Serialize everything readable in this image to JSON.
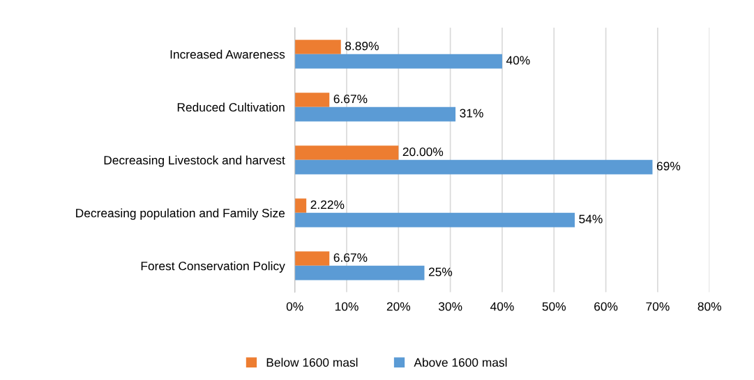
{
  "chart_data": {
    "type": "bar",
    "orientation": "horizontal",
    "categories": [
      "Increased Awareness",
      "Reduced Cultivation",
      "Decreasing Livestock and harvest",
      "Decreasing population and Family Size",
      "Forest Conservation Policy"
    ],
    "series": [
      {
        "name": "Below 1600 masl",
        "color": "#ed7d31",
        "values": [
          8.89,
          6.67,
          20.0,
          2.22,
          6.67
        ],
        "value_labels": [
          "8.89%",
          "6.67%",
          "20.00%",
          "2.22%",
          "6.67%"
        ]
      },
      {
        "name": "Above 1600 masl",
        "color": "#5b9bd5",
        "values": [
          40,
          31,
          69,
          54,
          25
        ],
        "value_labels": [
          "40%",
          "31%",
          "69%",
          "54%",
          "25%"
        ]
      }
    ],
    "xlim": [
      0,
      80
    ],
    "xticks": [
      {
        "value": 0,
        "label": "0%"
      },
      {
        "value": 10,
        "label": "10%"
      },
      {
        "value": 20,
        "label": "20%"
      },
      {
        "value": 30,
        "label": "30%"
      },
      {
        "value": 40,
        "label": "40%"
      },
      {
        "value": 50,
        "label": "50%"
      },
      {
        "value": 60,
        "label": "60%"
      },
      {
        "value": 70,
        "label": "70%"
      },
      {
        "value": 80,
        "label": "80%"
      }
    ],
    "grid": "x",
    "legend": "bottom"
  }
}
